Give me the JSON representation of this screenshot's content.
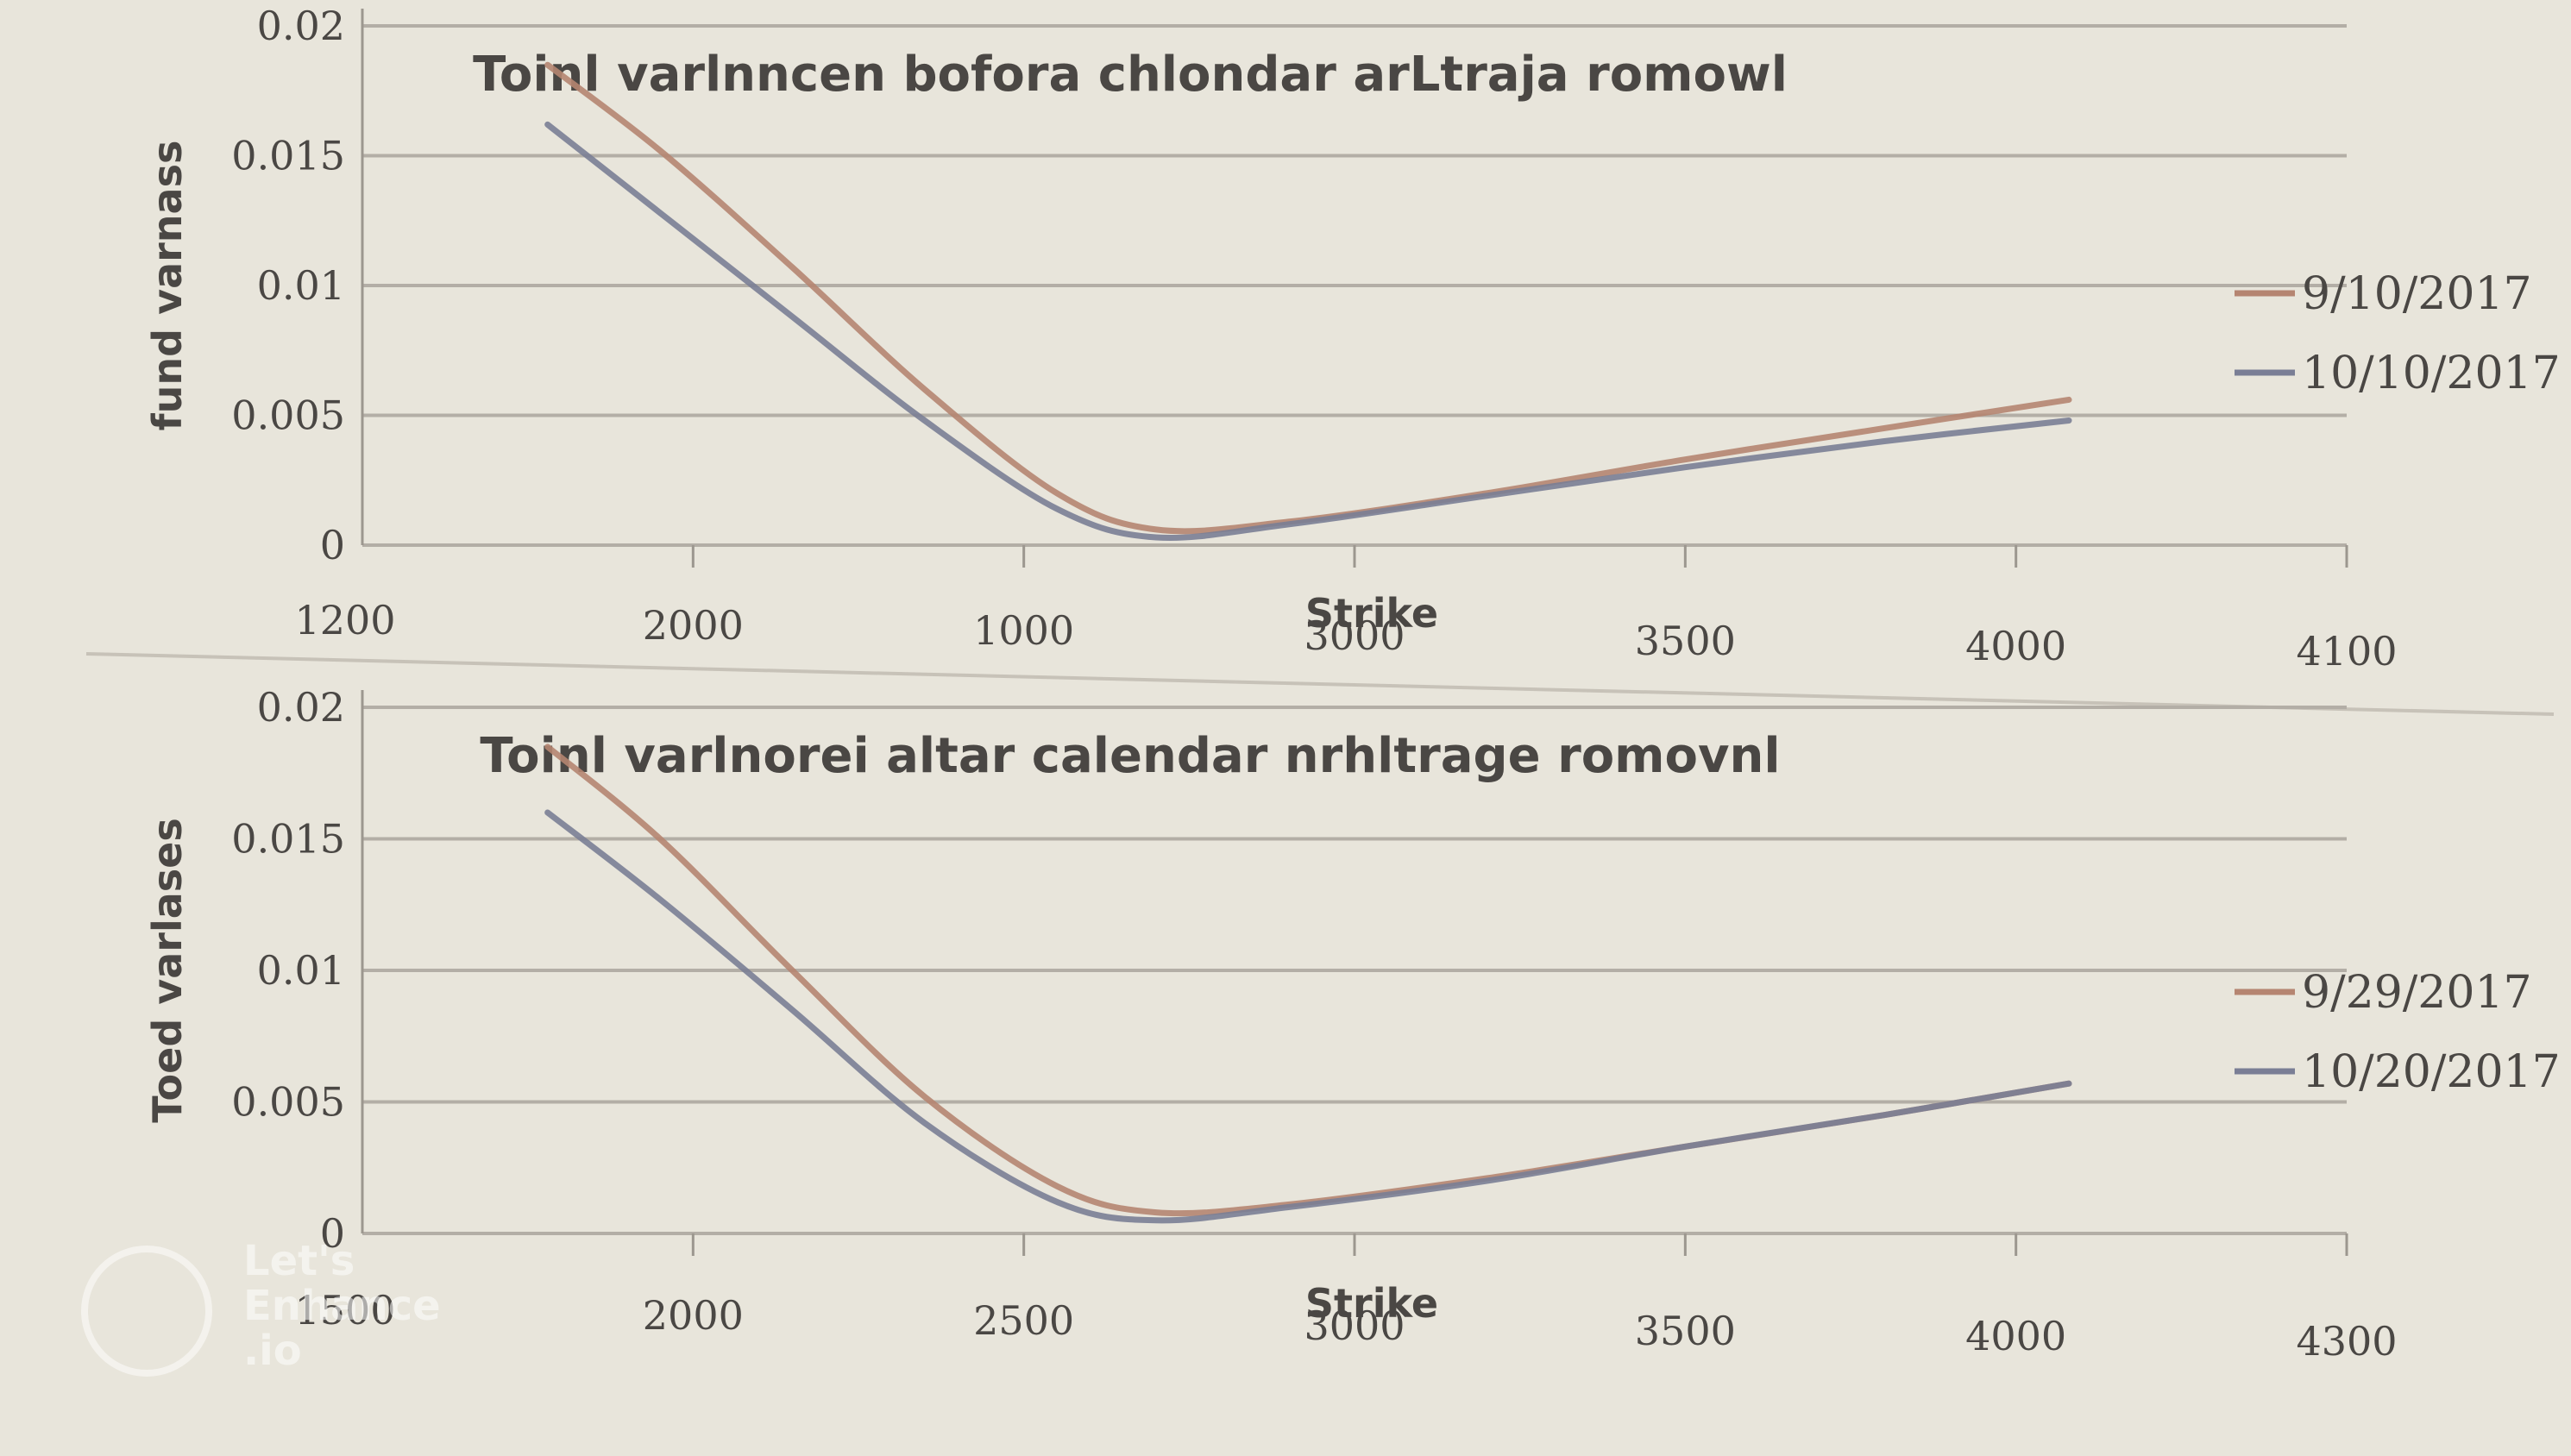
{
  "colors": {
    "background": "#e8e5db",
    "grid": "#b3aea6",
    "axis": "#9c978f",
    "text": "#4a4744",
    "series_a": "#b58571",
    "series_b": "#7a7e95"
  },
  "chart_data": [
    {
      "type": "line",
      "title": "Toinl varlnncen bofora chlondar arLtraja romowl",
      "xlabel": "Strike",
      "ylabel": "fund varnass",
      "xlim": [
        1500,
        4500
      ],
      "ylim": [
        0,
        0.02
      ],
      "x_ticks": [
        "1200",
        "2000",
        "1000",
        "3000",
        "3500",
        "4000",
        "4100"
      ],
      "y_ticks": [
        "0",
        "0.005",
        "0.01",
        "0.015",
        "0.02"
      ],
      "grid": true,
      "legend_position": "right",
      "series": [
        {
          "name": "9/10/2017",
          "color": "#b58571",
          "points": [
            [
              1780,
              0.0185
            ],
            [
              1950,
              0.0152
            ],
            [
              2150,
              0.0107
            ],
            [
              2350,
              0.006
            ],
            [
              2550,
              0.002
            ],
            [
              2700,
              0.0006
            ],
            [
              2900,
              0.0009
            ],
            [
              3200,
              0.002
            ],
            [
              3500,
              0.0033
            ],
            [
              3800,
              0.0045
            ],
            [
              4080,
              0.0056
            ]
          ]
        },
        {
          "name": "10/10/2017",
          "color": "#7a7e95",
          "points": [
            [
              1780,
              0.0162
            ],
            [
              1950,
              0.0128
            ],
            [
              2150,
              0.0088
            ],
            [
              2350,
              0.0048
            ],
            [
              2550,
              0.0014
            ],
            [
              2700,
              0.0003
            ],
            [
              2900,
              0.0008
            ],
            [
              3200,
              0.0019
            ],
            [
              3500,
              0.003
            ],
            [
              3800,
              0.004
            ],
            [
              4080,
              0.0048
            ]
          ]
        }
      ]
    },
    {
      "type": "line",
      "title": "Toinl varlnorei altar calendar nrhltrage romovnl",
      "xlabel": "Strike",
      "ylabel": "Toed varlases",
      "xlim": [
        1500,
        4500
      ],
      "ylim": [
        0,
        0.02
      ],
      "x_ticks": [
        "1500",
        "2000",
        "2500",
        "3000",
        "3500",
        "4000",
        "4300"
      ],
      "y_ticks": [
        "0",
        "0.005",
        "0.01",
        "0.015",
        "0.02"
      ],
      "grid": true,
      "legend_position": "right",
      "series": [
        {
          "name": "9/29/2017",
          "color": "#b58571",
          "points": [
            [
              1780,
              0.0185
            ],
            [
              1950,
              0.015
            ],
            [
              2150,
              0.01
            ],
            [
              2350,
              0.0052
            ],
            [
              2550,
              0.0018
            ],
            [
              2700,
              0.0008
            ],
            [
              2900,
              0.0011
            ],
            [
              3200,
              0.0021
            ],
            [
              3500,
              0.0033
            ],
            [
              3800,
              0.0045
            ],
            [
              4080,
              0.0057
            ]
          ]
        },
        {
          "name": "10/20/2017",
          "color": "#7a7e95",
          "points": [
            [
              1780,
              0.016
            ],
            [
              1950,
              0.0127
            ],
            [
              2150,
              0.0085
            ],
            [
              2350,
              0.0042
            ],
            [
              2550,
              0.0012
            ],
            [
              2700,
              0.0005
            ],
            [
              2900,
              0.001
            ],
            [
              3200,
              0.002
            ],
            [
              3500,
              0.0033
            ],
            [
              3800,
              0.0045
            ],
            [
              4080,
              0.0057
            ]
          ]
        }
      ]
    }
  ],
  "watermark": {
    "line1": "Let's",
    "line2": "Enhance",
    "line3": ".io"
  }
}
